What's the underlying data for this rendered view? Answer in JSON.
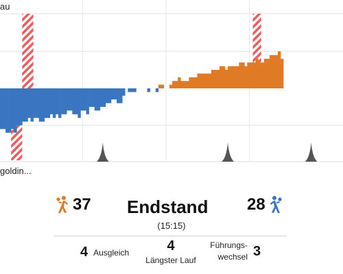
{
  "chart_data": {
    "type": "bar",
    "subtype": "lead-margin-timeline",
    "x_ticks": [
      "15'",
      "30'",
      "45'"
    ],
    "x_range": [
      0,
      60
    ],
    "grid": true,
    "series": [
      {
        "name": "",
        "color": "#e07a25",
        "side": "top",
        "x": [
          28.5,
          29,
          30.5,
          31,
          31.5,
          32,
          32.5,
          33,
          33.5,
          34,
          34.5,
          35,
          35.5,
          36,
          36.5,
          37,
          37.5,
          38,
          38.5,
          39,
          39.5,
          40,
          40.5,
          41,
          41.5,
          42,
          42.5,
          43,
          43.5,
          44,
          44.5,
          45,
          45.5,
          46,
          46.5,
          47,
          47.5,
          48,
          48.5,
          49,
          49.5,
          50,
          50.5
        ],
        "values": [
          1,
          1,
          1,
          2,
          2,
          3,
          2,
          2,
          2,
          3,
          3,
          3,
          4,
          4,
          4,
          4,
          4,
          5,
          5,
          5,
          6,
          6,
          5,
          6,
          6,
          6,
          6,
          7,
          7,
          6,
          7,
          7,
          7,
          8,
          7,
          7,
          8,
          8,
          9,
          9,
          9,
          10,
          8
        ]
      },
      {
        "name": "",
        "color": "#3a75c2",
        "side": "bottom",
        "x": [
          0,
          0.5,
          1,
          1.5,
          2,
          2.5,
          3,
          3.5,
          4,
          4.5,
          5,
          5.5,
          6,
          6.5,
          7,
          7.5,
          8,
          8.5,
          9,
          9.5,
          10,
          10.5,
          11,
          11.5,
          12,
          12.5,
          13,
          13.5,
          14,
          14.5,
          15,
          15.5,
          16,
          16.5,
          17,
          17.5,
          18,
          18.5,
          19,
          19.5,
          20,
          20.5,
          21,
          21.5,
          22,
          23,
          23.5,
          24
        ],
        "values": [
          11,
          11,
          12,
          12,
          11,
          12,
          10,
          10,
          9,
          9,
          8,
          9,
          8,
          8,
          9,
          9,
          8,
          8,
          7,
          8,
          7,
          8,
          7,
          7,
          6,
          6,
          7,
          7,
          8,
          6,
          6,
          7,
          5,
          5,
          6,
          6,
          5,
          5,
          4,
          4,
          3,
          3,
          4,
          4,
          2,
          1,
          1,
          1
        ]
      },
      {
        "name": "",
        "color": "#3a75c2",
        "side": "bottom",
        "x": [
          26.5,
          28
        ],
        "values": [
          1,
          1
        ]
      }
    ],
    "hatched_periods": [
      {
        "side": "top",
        "x_from": 4,
        "x_to": 6
      },
      {
        "side": "bottom",
        "x_from": 2,
        "x_to": 4
      },
      {
        "side": "top",
        "x_from": 45.5,
        "x_to": 47
      }
    ],
    "markers": [
      {
        "x": 18.5
      },
      {
        "x": 41
      },
      {
        "x": 56
      }
    ]
  },
  "top_label": "au",
  "bottom_label": "goldin...",
  "colors": {
    "home": "#e07a25",
    "away": "#3a75c2",
    "hatch": "#f05a5a"
  },
  "score": {
    "home": "37",
    "away": "28",
    "title": "Endstand",
    "halftime": "(15:15)",
    "home_icon": "handball-player-orange-icon",
    "away_icon": "handball-player-blue-icon"
  },
  "stats": {
    "ausgleich_num": "4",
    "ausgleich_label": "Ausgleich",
    "lauf_num": "4",
    "lauf_label": "Längster Lauf",
    "wechsel_num": "3",
    "wechsel_label_1": "Führungs-",
    "wechsel_label_2": "wechsel"
  }
}
